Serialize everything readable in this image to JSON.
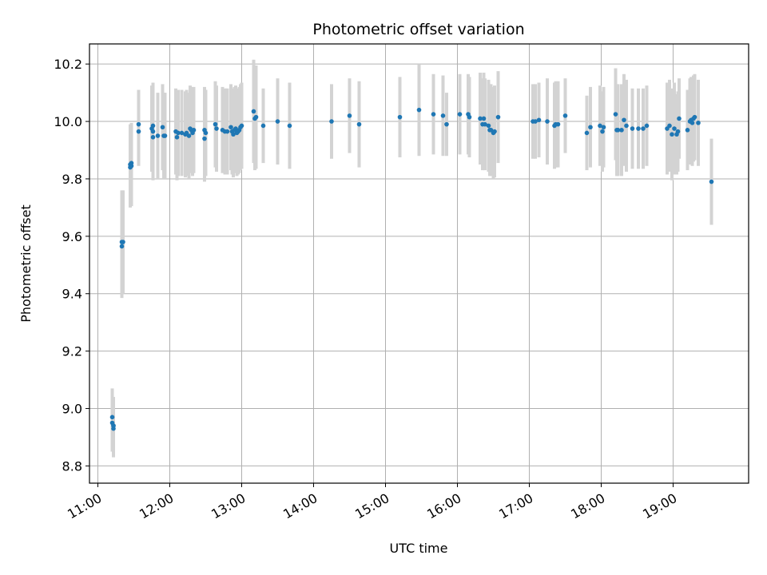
{
  "chart_data": {
    "type": "scatter",
    "title": "Photometric offset variation",
    "xlabel": "UTC time",
    "ylabel": "Photometric offset",
    "x_ticks": [
      "11:00",
      "12:00",
      "13:00",
      "14:00",
      "15:00",
      "16:00",
      "17:00",
      "18:00",
      "19:00"
    ],
    "y_ticks": [
      "8.8",
      "9.0",
      "9.2",
      "9.4",
      "9.6",
      "9.8",
      "10.0",
      "10.2"
    ],
    "xlim": [
      "10:53",
      "20:03"
    ],
    "ylim": [
      8.74,
      10.27
    ],
    "grid": true,
    "colors": {
      "points": "#1f77b4",
      "errorbars": "#d3d3d3",
      "grid": "#b0b0b0"
    },
    "series": [
      {
        "x": [
          "11:12",
          "11:12",
          "11:13",
          "11:13",
          "11:13",
          "11:20",
          "11:20",
          "11:21",
          "11:27",
          "11:27",
          "11:28",
          "11:28",
          "11:34",
          "11:34",
          "11:45",
          "11:46",
          "11:46",
          "11:46",
          "11:50",
          "11:54",
          "11:55",
          "11:56",
          "12:05",
          "12:06",
          "12:07",
          "12:10",
          "12:13",
          "12:14",
          "12:16",
          "12:17",
          "12:18",
          "12:19",
          "12:20",
          "12:29",
          "12:29",
          "12:30",
          "12:38",
          "12:39",
          "12:44",
          "12:46",
          "12:48",
          "12:51",
          "12:52",
          "12:53",
          "12:54",
          "12:55",
          "12:56",
          "12:57",
          "12:58",
          "12:59",
          "13:00",
          "13:10",
          "13:11",
          "13:12",
          "13:18",
          "13:30",
          "13:40",
          "14:15",
          "14:30",
          "14:38",
          "15:12",
          "15:28",
          "15:40",
          "15:48",
          "15:51",
          "16:02",
          "16:09",
          "16:10",
          "16:19",
          "16:21",
          "16:22",
          "16:23",
          "16:26",
          "16:27",
          "16:28",
          "16:30",
          "16:31",
          "16:34",
          "17:03",
          "17:05",
          "17:08",
          "17:15",
          "17:21",
          "17:22",
          "17:24",
          "17:30",
          "17:48",
          "17:51",
          "17:59",
          "18:01",
          "18:02",
          "18:12",
          "18:13",
          "18:14",
          "18:17",
          "18:19",
          "18:21",
          "18:26",
          "18:31",
          "18:35",
          "18:38",
          "18:55",
          "18:57",
          "18:59",
          "19:01",
          "19:03",
          "19:04",
          "19:05",
          "19:12",
          "19:14",
          "19:15",
          "19:16",
          "19:17",
          "19:18",
          "19:21",
          "19:32"
        ],
        "y": [
          8.97,
          8.95,
          8.94,
          8.93,
          8.94,
          9.58,
          9.565,
          9.58,
          9.85,
          9.84,
          9.855,
          9.845,
          9.99,
          9.965,
          9.975,
          9.985,
          9.945,
          9.965,
          9.95,
          9.98,
          9.95,
          9.95,
          9.965,
          9.945,
          9.96,
          9.96,
          9.955,
          9.96,
          9.95,
          9.975,
          9.97,
          9.96,
          9.97,
          9.97,
          9.94,
          9.96,
          9.99,
          9.975,
          9.97,
          9.965,
          9.965,
          9.98,
          9.965,
          9.955,
          9.97,
          9.975,
          9.96,
          9.965,
          9.97,
          9.98,
          9.985,
          10.035,
          10.01,
          10.015,
          9.985,
          10.0,
          9.985,
          10.0,
          10.02,
          9.99,
          10.015,
          10.04,
          10.025,
          10.02,
          9.99,
          10.025,
          10.025,
          10.015,
          10.01,
          9.99,
          10.01,
          9.99,
          9.985,
          9.97,
          9.97,
          9.96,
          9.965,
          10.015,
          10.0,
          10.0,
          10.005,
          10.0,
          9.985,
          9.99,
          9.99,
          10.02,
          9.96,
          9.98,
          9.985,
          9.965,
          9.98,
          10.025,
          9.97,
          9.97,
          9.97,
          10.005,
          9.985,
          9.975,
          9.975,
          9.975,
          9.985,
          9.975,
          9.985,
          9.955,
          9.975,
          9.955,
          9.965,
          10.01,
          9.97,
          10.0,
          10.005,
          9.995,
          10.01,
          10.015,
          9.995,
          9.79
        ],
        "err": [
          0.1,
          0.1,
          0.1,
          0.1,
          0.1,
          0.18,
          0.18,
          0.18,
          0.14,
          0.14,
          0.14,
          0.14,
          0.12,
          0.12,
          0.15,
          0.15,
          0.15,
          0.15,
          0.15,
          0.15,
          0.15,
          0.15,
          0.15,
          0.15,
          0.15,
          0.15,
          0.15,
          0.15,
          0.15,
          0.15,
          0.15,
          0.15,
          0.15,
          0.15,
          0.15,
          0.15,
          0.15,
          0.15,
          0.15,
          0.15,
          0.15,
          0.15,
          0.15,
          0.15,
          0.15,
          0.15,
          0.15,
          0.15,
          0.15,
          0.15,
          0.15,
          0.18,
          0.18,
          0.18,
          0.13,
          0.15,
          0.15,
          0.13,
          0.13,
          0.15,
          0.14,
          0.16,
          0.14,
          0.14,
          0.11,
          0.14,
          0.14,
          0.14,
          0.16,
          0.16,
          0.16,
          0.16,
          0.16,
          0.16,
          0.16,
          0.16,
          0.16,
          0.16,
          0.13,
          0.13,
          0.13,
          0.15,
          0.15,
          0.15,
          0.15,
          0.13,
          0.13,
          0.14,
          0.14,
          0.14,
          0.14,
          0.16,
          0.16,
          0.16,
          0.16,
          0.16,
          0.16,
          0.14,
          0.14,
          0.14,
          0.14,
          0.16,
          0.16,
          0.16,
          0.16,
          0.14,
          0.14,
          0.14,
          0.14,
          0.15,
          0.15,
          0.15,
          0.15,
          0.15,
          0.15,
          0.15
        ]
      }
    ]
  }
}
